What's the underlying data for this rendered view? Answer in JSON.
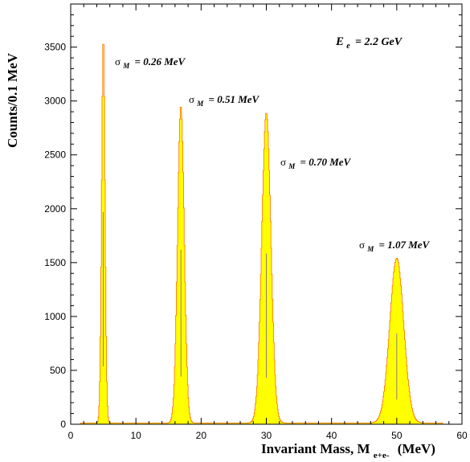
{
  "chart_data": {
    "type": "area",
    "title": "",
    "xlabel": "Invariant Mass,   M",
    "xlabel_sub": "e+e-",
    "xlabel_unit": "(MeV)",
    "ylabel": "Counts/0.1 MeV",
    "xlim": [
      0,
      60
    ],
    "ylim": [
      0,
      3900
    ],
    "x_ticks": [
      0,
      10,
      20,
      30,
      40,
      50,
      60
    ],
    "y_ticks": [
      0,
      500,
      1000,
      1500,
      2000,
      2500,
      3000,
      3500
    ],
    "grid": false,
    "legend": "none",
    "colors": {
      "fill": "#ffff00",
      "outline": "#ff6a00",
      "tail": "#7a5a9a",
      "axis": "#000000"
    },
    "peaks": [
      {
        "mass": 5.0,
        "height": 3580,
        "sigma": 0.26,
        "label": "0.26 MeV"
      },
      {
        "mass": 16.9,
        "height": 2945,
        "sigma": 0.51,
        "label": "0.51 MeV"
      },
      {
        "mass": 30.0,
        "height": 2880,
        "sigma": 0.7,
        "label": "0.70 MeV"
      },
      {
        "mass": 50.0,
        "height": 1530,
        "sigma": 1.07,
        "label": "1.07 MeV"
      }
    ],
    "background_level": 12,
    "annotations": [
      {
        "text": "= 0.26 MeV",
        "prefix": "σ",
        "sub": "M"
      },
      {
        "text": "= 0.51 MeV",
        "prefix": "σ",
        "sub": "M"
      },
      {
        "text": "= 0.70 MeV",
        "prefix": "σ",
        "sub": "M"
      },
      {
        "text": "= 1.07 MeV",
        "prefix": "σ",
        "sub": "M"
      }
    ],
    "beam_label": {
      "prefix": "E",
      "sub": "e",
      "text": "= 2.2 GeV"
    }
  }
}
